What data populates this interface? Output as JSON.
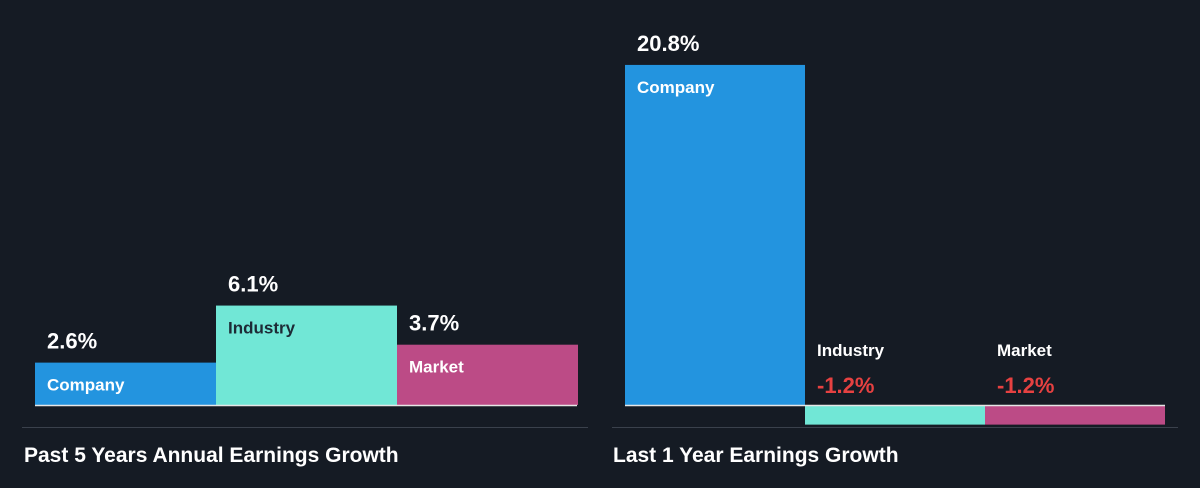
{
  "colors": {
    "background": "#151b24",
    "company": "#2394df",
    "industry": "#71e7d6",
    "market": "#bc4b86",
    "positive_label": "#ffffff",
    "negative_label": "#e64141",
    "axis": "#e6e6e6"
  },
  "chart_data": [
    {
      "type": "bar",
      "title": "Past 5 Years Annual Earnings Growth",
      "categories": [
        "Company",
        "Industry",
        "Market"
      ],
      "values": [
        2.6,
        6.1,
        3.7
      ],
      "labels": [
        "2.6%",
        "6.1%",
        "3.7%"
      ],
      "unit": "%"
    },
    {
      "type": "bar",
      "title": "Last 1 Year Earnings Growth",
      "categories": [
        "Company",
        "Industry",
        "Market"
      ],
      "values": [
        20.8,
        -1.2,
        -1.2
      ],
      "labels": [
        "20.8%",
        "-1.2%",
        "-1.2%"
      ],
      "unit": "%"
    }
  ]
}
